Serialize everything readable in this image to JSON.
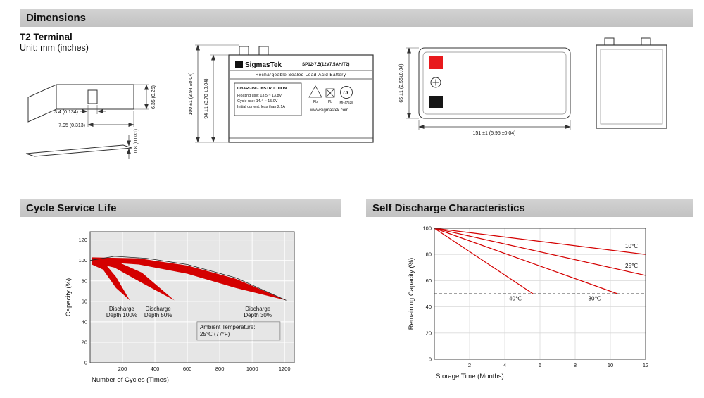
{
  "sections": {
    "dimensions_title": "Dimensions",
    "cycle_title": "Cycle Service Life",
    "self_discharge_title": "Self Discharge Characteristics"
  },
  "dimensions": {
    "subtitle": "T2 Terminal",
    "unit_note": "Unit: mm (inches)",
    "terminal": {
      "slot_width": "3.4 (0.134)",
      "tab_width": "7.95 (0.313)",
      "tab_height": "6.35 (0.25)",
      "tab_thickness": "0.8 (0.031)"
    },
    "front_view": {
      "overall_height": "100 ±1 (3.94 ±0.04)",
      "case_height": "94 ±1 (3.70 ±0.04)",
      "brand": "SigmasTek",
      "model": "SP12-7.5(12V7.5AH/T2)",
      "battery_type": "Rechargeable Sealed Lead-Acid Battery",
      "charging_title": "CHARGING INSTRUCTION",
      "charging_line1": "Floating use: 13.5 ~ 13.8V",
      "charging_line2": "Cycle use: 14.4 ~ 15.0V",
      "charging_line3": "Initial current: less than 2.1A",
      "pb_label": "Pb",
      "ul_label": "UL",
      "ul_code": "MH47528",
      "website": "www.sigmastek.com"
    },
    "top_view": {
      "width_dim": "151 ±1 (5.95 ±0.04)",
      "depth_dim": "65 ±1 (2.56±0.04)"
    }
  },
  "colors": {
    "header_bar": "#c8c8c8",
    "positive_terminal": "#e8191c",
    "negative_terminal": "#161616",
    "chart_red": "#d40000"
  },
  "chart_data": [
    {
      "type": "area",
      "title": "Cycle Service Life",
      "xlabel": "Number of Cycles (Times)",
      "ylabel": "Capacity (%)",
      "xlim": [
        0,
        1260
      ],
      "ylim": [
        0,
        128
      ],
      "xticks": [
        200,
        400,
        600,
        800,
        1000,
        1200
      ],
      "yticks": [
        0,
        20,
        40,
        60,
        80,
        100,
        120
      ],
      "band_color": "#d40000",
      "plot_bg": "#e6e6e6",
      "grid_color": "#ffffff",
      "bands": [
        {
          "label_lines": [
            "Discharge",
            "Depth 100%"
          ],
          "label_xy": [
            195,
            51
          ],
          "points": [
            [
              10,
              101
            ],
            [
              80,
              99
            ],
            [
              160,
              84
            ],
            [
              245,
              61
            ],
            [
              160,
              73
            ],
            [
              80,
              91
            ],
            [
              10,
              96
            ]
          ]
        },
        {
          "label_lines": [
            "Discharge",
            "Depth 50%"
          ],
          "label_xy": [
            420,
            51
          ],
          "points": [
            [
              10,
              102
            ],
            [
              150,
              100
            ],
            [
              320,
              88
            ],
            [
              520,
              61
            ],
            [
              320,
              78
            ],
            [
              150,
              93
            ],
            [
              10,
              98
            ]
          ]
        },
        {
          "label_lines": [
            "Discharge",
            "Depth 30%"
          ],
          "label_xy": [
            1035,
            51
          ],
          "points": [
            [
              10,
              103
            ],
            [
              300,
              102
            ],
            [
              600,
              95
            ],
            [
              900,
              82
            ],
            [
              1210,
              61
            ],
            [
              900,
              73
            ],
            [
              600,
              87
            ],
            [
              300,
              96
            ],
            [
              10,
              99
            ]
          ]
        }
      ],
      "top_curve": [
        [
          0,
          100
        ],
        [
          150,
          104
        ],
        [
          350,
          102
        ],
        [
          600,
          96
        ],
        [
          900,
          83
        ],
        [
          1210,
          61
        ]
      ],
      "annotation": {
        "lines": [
          "Ambient Temperature:",
          "25℃ (77°F)"
        ],
        "xy": [
          660,
          40
        ]
      }
    },
    {
      "type": "line",
      "title": "Self Discharge Characteristics",
      "xlabel": "Storage Time (Months)",
      "ylabel": "Remaining Capacity (%)",
      "xlim": [
        0,
        12
      ],
      "ylim": [
        0,
        100
      ],
      "xticks": [
        2,
        4,
        6,
        8,
        10,
        12
      ],
      "yticks": [
        0,
        20,
        40,
        60,
        80,
        100
      ],
      "line_color": "#d40000",
      "plot_bg": "#ffffff",
      "grid_color": "#d9d9d9",
      "dashed_line_y": 50,
      "series": [
        {
          "name": "10℃",
          "points": [
            [
              0,
              100
            ],
            [
              12,
              80
            ]
          ],
          "label_xy": [
            11.2,
            85
          ]
        },
        {
          "name": "25℃",
          "points": [
            [
              0,
              100
            ],
            [
              12,
              64
            ]
          ],
          "label_xy": [
            11.2,
            70
          ]
        },
        {
          "name": "30℃",
          "points": [
            [
              0,
              100
            ],
            [
              10.4,
              50
            ]
          ],
          "label_xy": [
            9.1,
            45
          ]
        },
        {
          "name": "40℃",
          "points": [
            [
              0,
              100
            ],
            [
              5.6,
              50
            ]
          ],
          "label_xy": [
            4.6,
            45
          ]
        }
      ]
    }
  ]
}
